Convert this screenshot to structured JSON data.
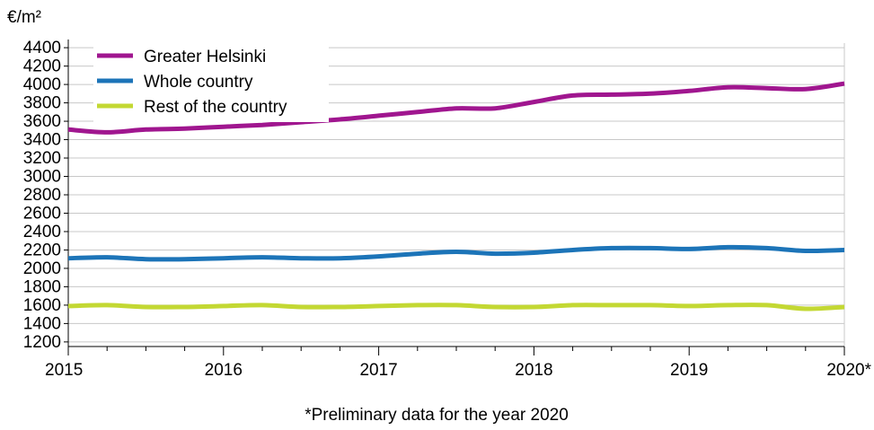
{
  "chart_data": {
    "type": "line",
    "title": "",
    "ylabel": "€/m²",
    "xlabel": "",
    "note": "*Preliminary data for the year 2020",
    "ylim": [
      1150,
      4450
    ],
    "yticks": [
      1200,
      1400,
      1600,
      1800,
      2000,
      2200,
      2400,
      2600,
      2800,
      3000,
      3200,
      3400,
      3600,
      3800,
      4000,
      4200,
      4400
    ],
    "xlim": [
      2015.0,
      2020.0
    ],
    "xticks": [
      {
        "value": 2015,
        "label": "2015"
      },
      {
        "value": 2016,
        "label": "2016"
      },
      {
        "value": 2017,
        "label": "2017"
      },
      {
        "value": 2018,
        "label": "2018"
      },
      {
        "value": 2019,
        "label": "2019"
      },
      {
        "value": 2020,
        "label": "2020*"
      }
    ],
    "grid": true,
    "legend_position": "top-left",
    "x": [
      2015.0,
      2015.25,
      2015.5,
      2015.75,
      2016.0,
      2016.25,
      2016.5,
      2016.75,
      2017.0,
      2017.25,
      2017.5,
      2017.75,
      2018.0,
      2018.25,
      2018.5,
      2018.75,
      2019.0,
      2019.25,
      2019.5,
      2019.75,
      2020.0
    ],
    "series": [
      {
        "name": "Greater Helsinki",
        "color": "#a0168f",
        "values": [
          3510,
          3480,
          3510,
          3520,
          3540,
          3560,
          3590,
          3620,
          3660,
          3700,
          3740,
          3740,
          3810,
          3880,
          3890,
          3900,
          3930,
          3970,
          3960,
          3950,
          4010
        ]
      },
      {
        "name": "Whole country",
        "color": "#1c74b8",
        "values": [
          2110,
          2120,
          2100,
          2100,
          2110,
          2120,
          2110,
          2110,
          2130,
          2160,
          2180,
          2160,
          2170,
          2200,
          2220,
          2220,
          2210,
          2230,
          2220,
          2190,
          2200
        ]
      },
      {
        "name": "Rest of the country",
        "color": "#c3d833",
        "values": [
          1590,
          1600,
          1580,
          1580,
          1590,
          1600,
          1580,
          1580,
          1590,
          1600,
          1600,
          1580,
          1580,
          1600,
          1600,
          1600,
          1590,
          1600,
          1600,
          1560,
          1580
        ]
      }
    ]
  }
}
